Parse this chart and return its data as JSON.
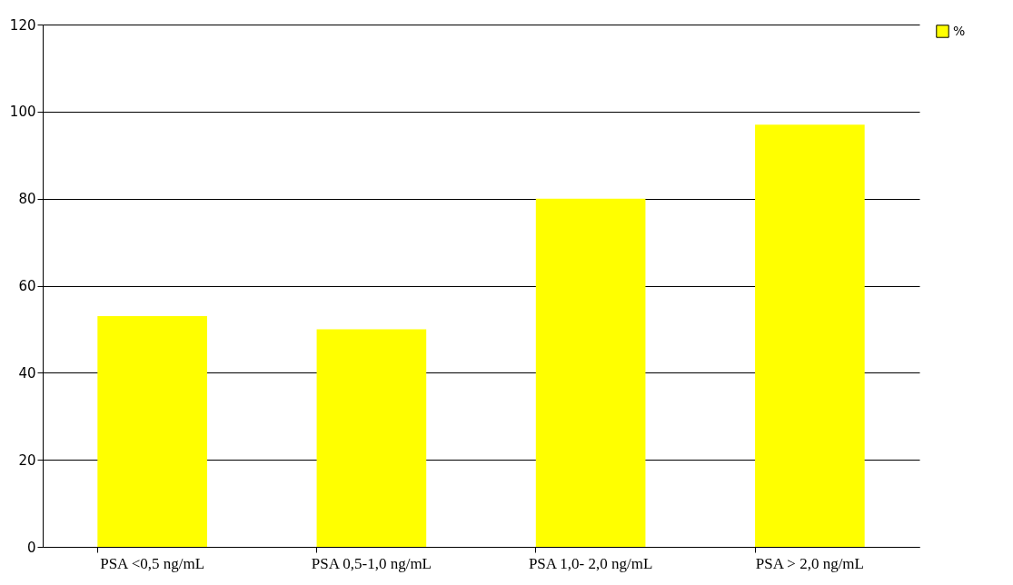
{
  "chart_data": {
    "type": "bar",
    "categories": [
      "PSA <0,5 ng/mL",
      "PSA 0,5-1,0 ng/mL",
      "PSA 1,0- 2,0 ng/mL",
      "PSA > 2,0 ng/mL"
    ],
    "series": [
      {
        "name": "%",
        "color": "#ffff00",
        "values": [
          53,
          50,
          80,
          97
        ]
      }
    ],
    "ylim": [
      0,
      120
    ],
    "yticks": [
      0,
      20,
      40,
      60,
      80,
      100,
      120
    ],
    "grid": "y",
    "legend": "right"
  }
}
